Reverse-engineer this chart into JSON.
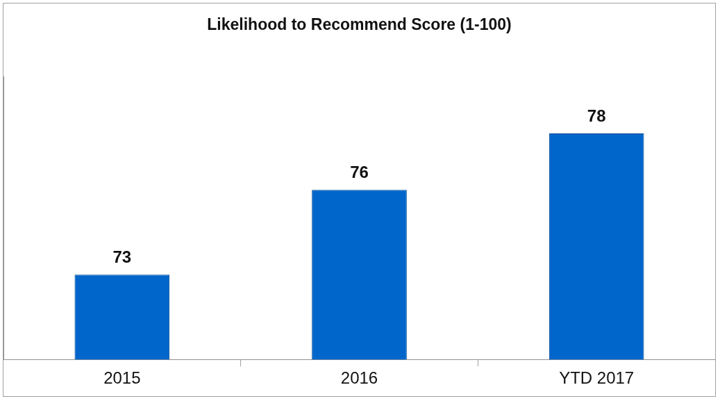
{
  "chart_data": {
    "type": "bar",
    "title": "Likelihood to Recommend Score (1-100)",
    "categories": [
      "2015",
      "2016",
      "YTD 2017"
    ],
    "values": [
      73,
      76,
      78
    ],
    "color": "#0066cc",
    "ylim": [
      70,
      80
    ],
    "data_labels": true,
    "grid": false,
    "legend": false,
    "tick_labels": "x"
  }
}
